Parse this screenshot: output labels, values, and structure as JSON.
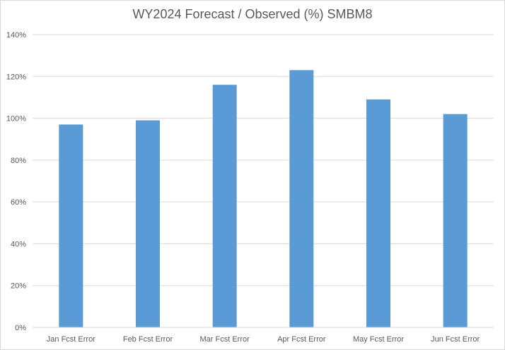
{
  "chart_data": {
    "type": "bar",
    "title": "WY2024 Forecast / Observed (%) SMBM8",
    "xlabel": "",
    "ylabel": "",
    "categories": [
      "Jan Fcst Error",
      "Feb Fcst Error",
      "Mar Fcst Error",
      "Apr Fcst Error",
      "May Fcst Error",
      "Jun Fcst Error"
    ],
    "values": [
      97,
      99,
      116,
      123,
      109,
      102
    ],
    "ylim": [
      0,
      140
    ],
    "yticks": [
      0,
      20,
      40,
      60,
      80,
      100,
      120,
      140
    ],
    "ytick_labels": [
      "0%",
      "20%",
      "40%",
      "60%",
      "80%",
      "100%",
      "120%",
      "140%"
    ],
    "grid": true,
    "legend": "none",
    "colors": {
      "bar": "#5b9bd5",
      "grid": "#d9d9d9",
      "tick_text": "#595959",
      "title_text": "#595959"
    }
  }
}
